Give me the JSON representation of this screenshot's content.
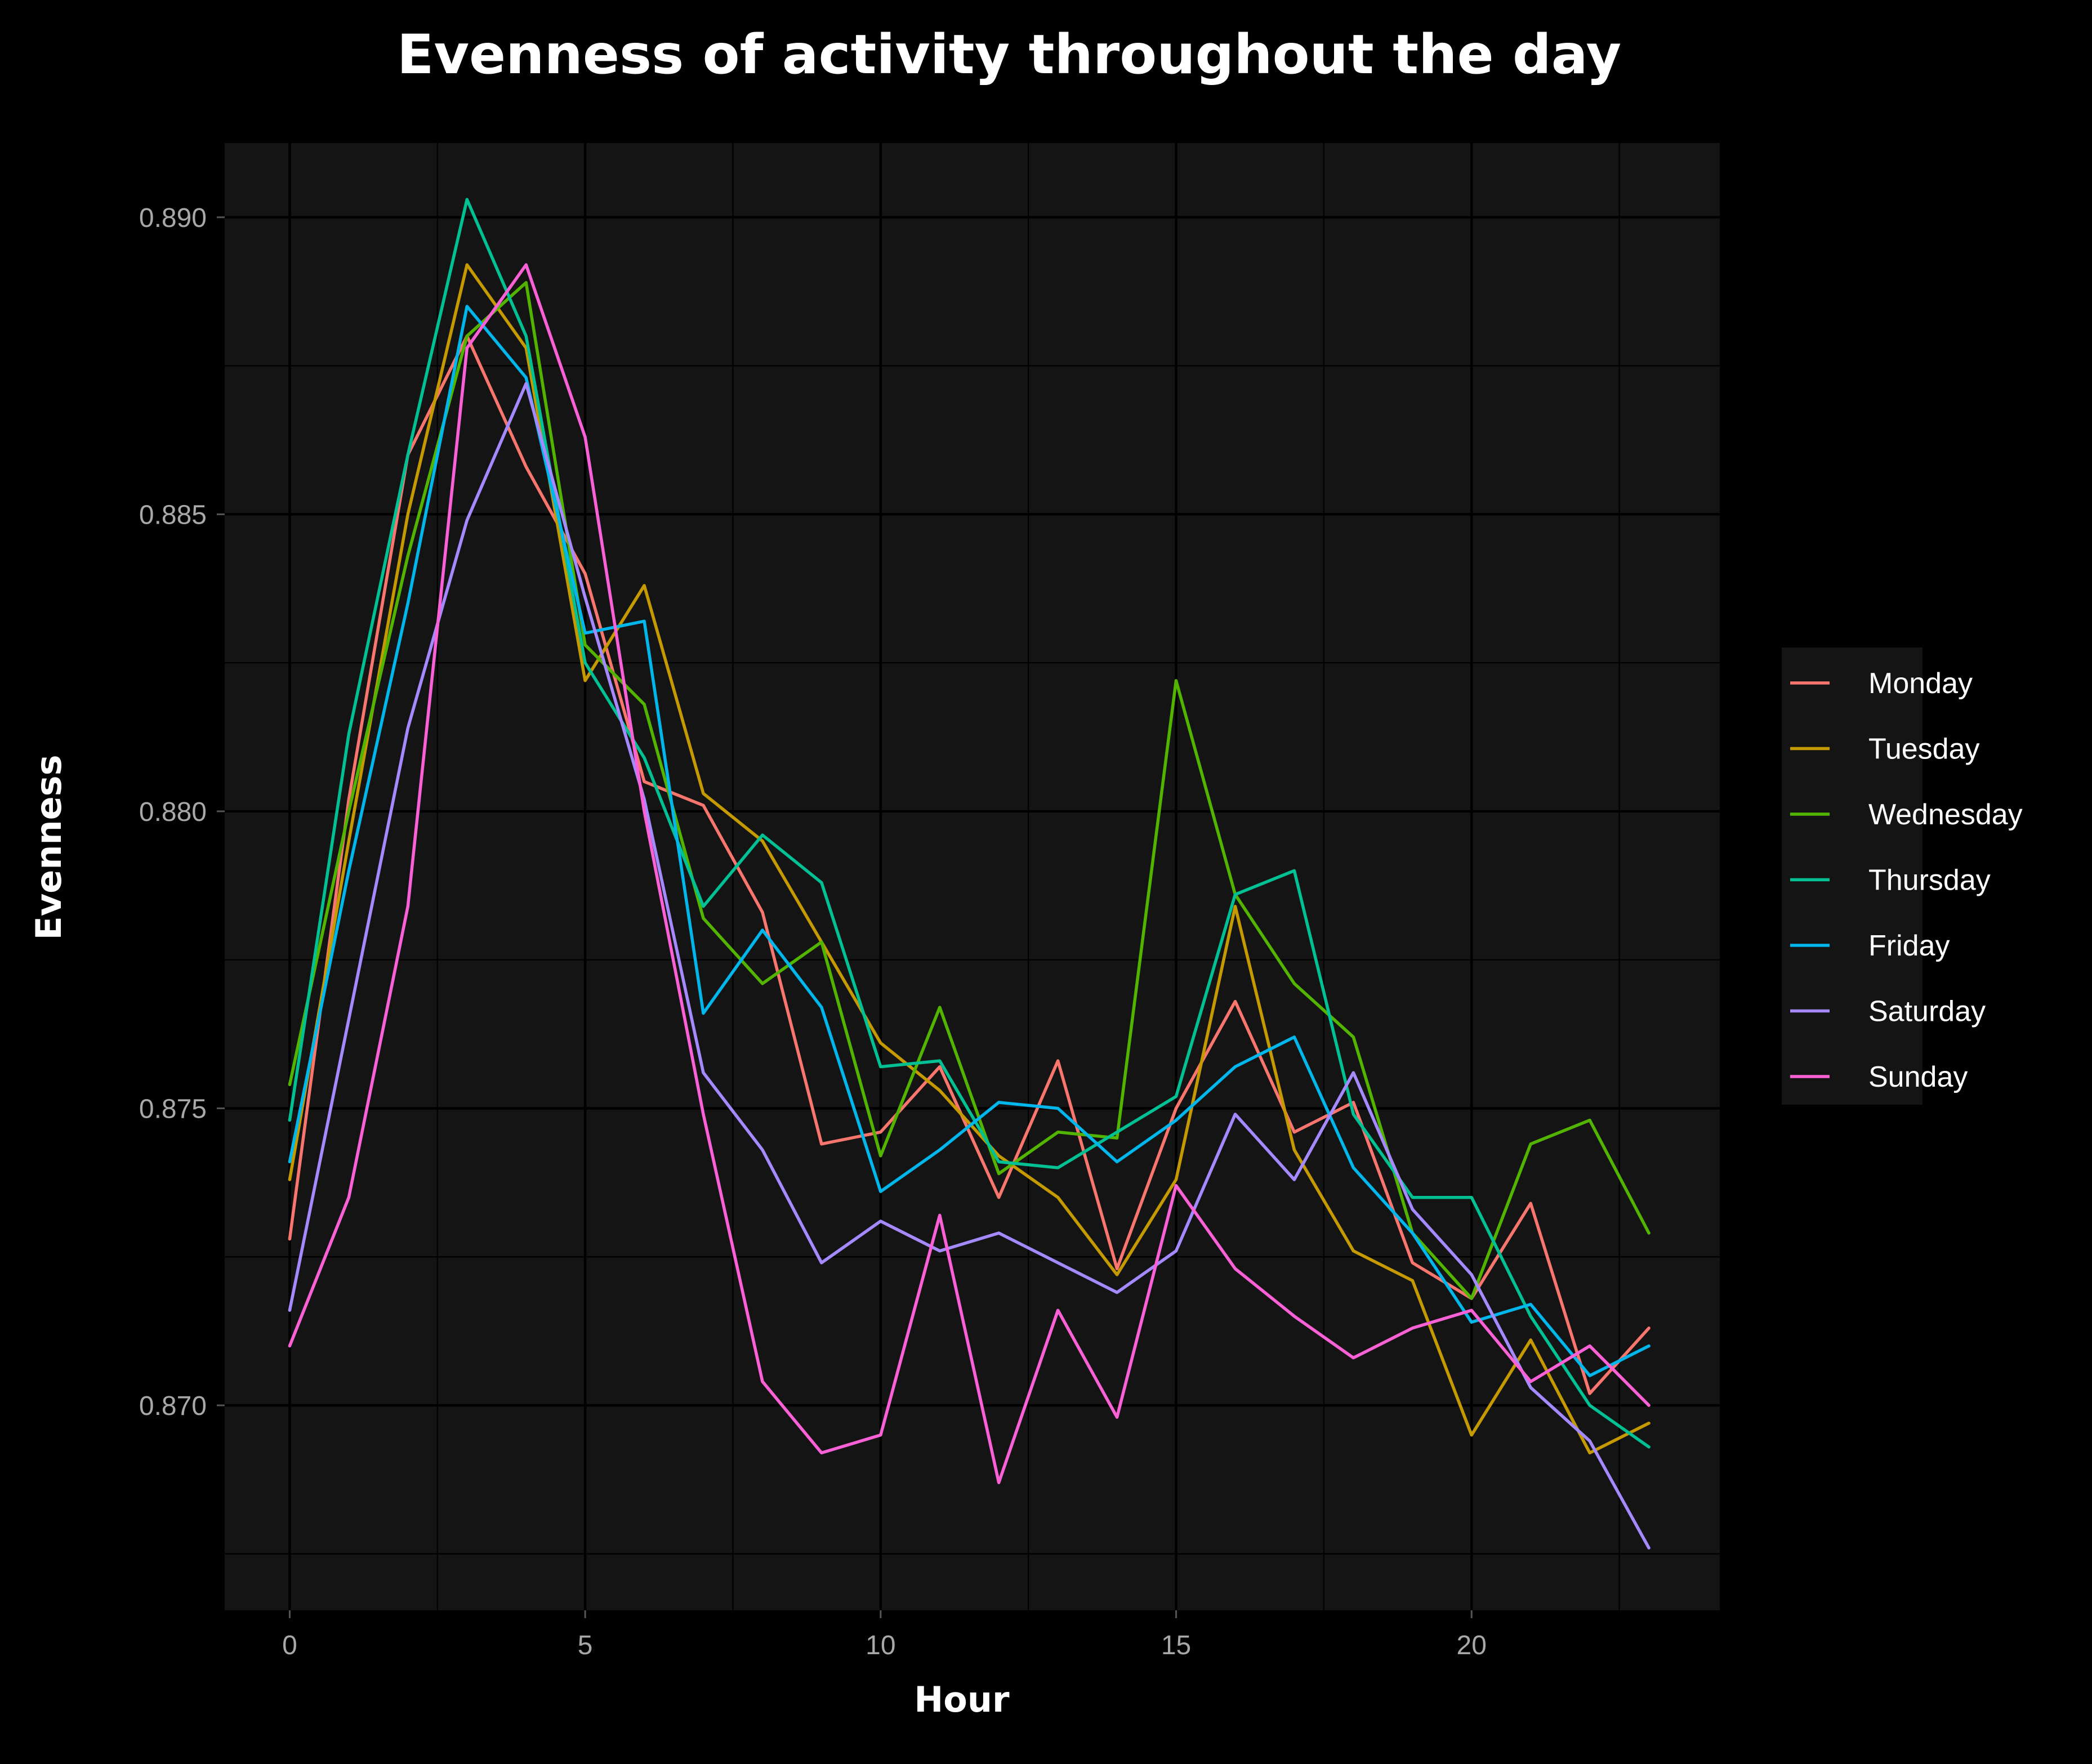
{
  "chart_data": {
    "type": "line",
    "title": "Evenness of activity throughout the day",
    "xlabel": "Hour",
    "ylabel": "Evenness",
    "xlim": [
      -1.1,
      24.2
    ],
    "ylim": [
      0.86655,
      0.89125
    ],
    "x_ticks": [
      0,
      5,
      10,
      15,
      20
    ],
    "x_tick_labels": [
      "0",
      "5",
      "10",
      "15",
      "20"
    ],
    "y_ticks": [
      0.87,
      0.875,
      0.88,
      0.885,
      0.89
    ],
    "y_tick_labels": [
      "0.870",
      "0.875",
      "0.880",
      "0.885",
      "0.890"
    ],
    "grid": true,
    "legend_position": "right",
    "background": "#141414",
    "x": [
      0,
      1,
      2,
      3,
      4,
      5,
      6,
      7,
      8,
      9,
      10,
      11,
      12,
      13,
      14,
      15,
      16,
      17,
      18,
      19,
      20,
      21,
      22,
      23
    ],
    "series": [
      {
        "name": "Monday",
        "color": "#F8766D",
        "values": [
          0.8728,
          0.8802,
          0.886,
          0.888,
          0.8858,
          0.884,
          0.8805,
          0.8801,
          0.8783,
          0.8744,
          0.8746,
          0.8757,
          0.8735,
          0.8758,
          0.8723,
          0.875,
          0.8768,
          0.8746,
          0.8751,
          0.8724,
          0.8718,
          0.8734,
          0.8702,
          0.8713
        ]
      },
      {
        "name": "Tuesday",
        "color": "#C49A00",
        "values": [
          0.8738,
          0.8795,
          0.885,
          0.8892,
          0.8878,
          0.8822,
          0.8838,
          0.8803,
          0.8795,
          0.8778,
          0.8761,
          0.8753,
          0.8742,
          0.8735,
          0.8722,
          0.8738,
          0.8784,
          0.8743,
          0.8726,
          0.8721,
          0.8695,
          0.8711,
          0.8692,
          0.8697
        ]
      },
      {
        "name": "Wednesday",
        "color": "#53B400",
        "values": [
          0.8754,
          0.88,
          0.8843,
          0.888,
          0.8889,
          0.8828,
          0.8818,
          0.8782,
          0.8771,
          0.8778,
          0.8742,
          0.8767,
          0.8739,
          0.8746,
          0.8745,
          0.8822,
          0.8786,
          0.8771,
          0.8762,
          0.8729,
          0.8718,
          0.8744,
          0.8748,
          0.8729
        ]
      },
      {
        "name": "Thursday",
        "color": "#00C094",
        "values": [
          0.8748,
          0.8813,
          0.886,
          0.8903,
          0.888,
          0.8825,
          0.8809,
          0.8784,
          0.8796,
          0.8788,
          0.8757,
          0.8758,
          0.8741,
          0.874,
          0.8746,
          0.8752,
          0.8786,
          0.879,
          0.8749,
          0.8735,
          0.8735,
          0.8715,
          0.87,
          0.8693
        ]
      },
      {
        "name": "Friday",
        "color": "#00B6EB",
        "values": [
          0.8741,
          0.879,
          0.8835,
          0.8885,
          0.8873,
          0.883,
          0.8832,
          0.8766,
          0.878,
          0.8767,
          0.8736,
          0.8743,
          0.8751,
          0.875,
          0.8741,
          0.8748,
          0.8757,
          0.8762,
          0.874,
          0.8729,
          0.8714,
          0.8717,
          0.8705,
          0.871
        ]
      },
      {
        "name": "Saturday",
        "color": "#A58AFF",
        "values": [
          0.8716,
          0.8765,
          0.8814,
          0.8849,
          0.8872,
          0.8836,
          0.8802,
          0.8756,
          0.8743,
          0.8724,
          0.8731,
          0.8726,
          0.8729,
          0.8724,
          0.8719,
          0.8726,
          0.8749,
          0.8738,
          0.8756,
          0.8733,
          0.8722,
          0.8703,
          0.8694,
          0.8676
        ]
      },
      {
        "name": "Sunday",
        "color": "#FB61D7",
        "values": [
          0.871,
          0.8735,
          0.8784,
          0.8878,
          0.8892,
          0.8863,
          0.88,
          0.8749,
          0.8704,
          0.8692,
          0.8695,
          0.8732,
          0.8687,
          0.8716,
          0.8698,
          0.8737,
          0.8723,
          0.8715,
          0.8708,
          0.8713,
          0.8716,
          0.8704,
          0.871,
          0.87
        ]
      }
    ]
  }
}
